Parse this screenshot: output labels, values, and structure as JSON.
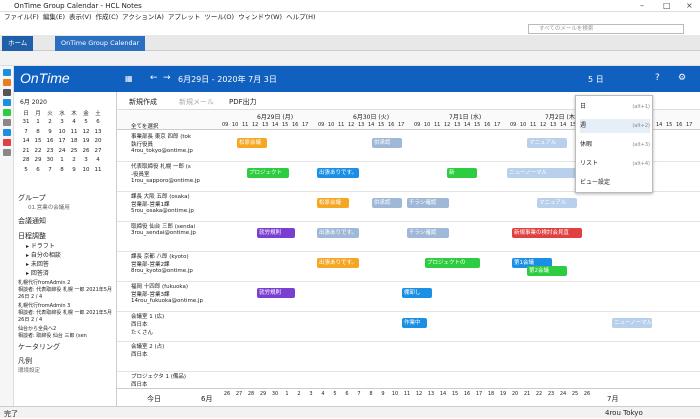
{
  "window": {
    "title": "OnTime Group Calendar - HCL Notes"
  },
  "menubar": [
    "ファイル(F)",
    "編集(E)",
    "表示(V)",
    "作成(C)",
    "アクション(A)",
    "アプレット",
    "ツール(O)",
    "ウィンドウ(W)",
    "ヘルプ(H)"
  ],
  "search": {
    "placeholder": "すべてのメールを検索"
  },
  "tabs": [
    {
      "label": "ホーム"
    },
    {
      "label": "OnTime Group Calendar"
    }
  ],
  "header": {
    "logo": "OnTime",
    "date_range": "6月29日 - 2020年 7月 3日",
    "view_label": "5 日"
  },
  "calendar": {
    "month": "6月 2020",
    "weekdays": [
      "日",
      "月",
      "火",
      "水",
      "木",
      "金",
      "土"
    ],
    "weeks": [
      [
        "31",
        "1",
        "2",
        "3",
        "4",
        "5",
        "6"
      ],
      [
        "7",
        "8",
        "9",
        "10",
        "11",
        "12",
        "13"
      ],
      [
        "14",
        "15",
        "16",
        "17",
        "18",
        "19",
        "20"
      ],
      [
        "21",
        "22",
        "23",
        "24",
        "25",
        "26",
        "27"
      ],
      [
        "28",
        "29",
        "30",
        "1",
        "2",
        "3",
        "4"
      ],
      [
        "5",
        "6",
        "7",
        "8",
        "9",
        "10",
        "11"
      ]
    ]
  },
  "sidebar": {
    "group": "グループ",
    "group_sub": "01.営業の会議用",
    "meeting": "会議通知",
    "approval": "日程調整",
    "approval_badge": "6",
    "tree": [
      "ドラフト",
      "自分の相談",
      "未回答",
      "回答済"
    ],
    "items": [
      {
        "t": "札幌代行fromAdmin 2",
        "s": "相談者: 代表取締役 札幌 一郎",
        "d": "2021年5月26日",
        "n": "2 / 4"
      },
      {
        "t": "札幌代行fromAdmin 3",
        "s": "相談者: 代表取締役 札幌 一郎",
        "d": "2021年5月26日",
        "n": "2 / 4"
      },
      {
        "t": "仙台から全員へ2",
        "s": "相談者: 取締役 仙台 三郎 (sen"
      }
    ],
    "care": "ケータリング",
    "legend": "凡例",
    "legend_sub": "環境設定"
  },
  "toolbar": {
    "new": "新規作成",
    "mail": "新規メール",
    "pdf": "PDF出力",
    "select_all": "全てを選択"
  },
  "days": [
    "6月29日 (月)",
    "6月30日 (火)",
    "7月1日 (水)",
    "7月2日 (木)",
    "(金)"
  ],
  "hours": [
    "09",
    "10",
    "11",
    "12",
    "13",
    "14",
    "15",
    "16",
    "17",
    "18"
  ],
  "people": [
    {
      "n": "事業部長 東京 四郎 (tok",
      "s": "執行役員",
      "e": "4rou_tokyo@ontime.jp"
    },
    {
      "n": "代表取締役 札幌 一郎 (s",
      "s": "-役員室",
      "e": "1rou_sapporo@ontime.jp"
    },
    {
      "n": "課長 大阪 五郎 (osaka)",
      "s": "営業部-営業1課",
      "e": "5rou_osaka@ontime.jp"
    },
    {
      "n": "取締役 仙台 三郎 (sendai",
      "s": "",
      "e": "3rou_sendai@ontime.jp"
    },
    {
      "n": "課長 京都 八郎 (kyoto)",
      "s": "営業部-営業2課",
      "e": "8rou_kyoto@ontime.jp"
    },
    {
      "n": "福岡 十四郎 (fukuoka)",
      "s": "営業部-営業3課",
      "e": "14rou_fukuoka@ontime.jp"
    },
    {
      "n": "会議室 1 (広)",
      "s": "西日本",
      "e": "たくさん"
    },
    {
      "n": "会議室 2 (占)",
      "s": "西日本",
      "e": ""
    },
    {
      "n": "プロジェクタ 1 (備品)",
      "s": "西日本",
      "e": ""
    }
  ],
  "events": [
    {
      "t": "松原会議",
      "c": "#f5a623"
    },
    {
      "t": "供承認",
      "c": "#a0b8d8"
    },
    {
      "t": "マニュアル",
      "c": "#b8d0ec"
    },
    {
      "t": "プロジェクト",
      "c": "#2ecc40"
    },
    {
      "t": "出張ありです。",
      "c": "#1a8fe3"
    },
    {
      "t": "新",
      "c": "#2ecc40"
    },
    {
      "t": "ニューノーマル",
      "c": "#b8d0ec"
    },
    {
      "t": "松原会議",
      "c": "#f5a623"
    },
    {
      "t": "供承認",
      "c": "#a0b8d8"
    },
    {
      "t": "チラシ確認",
      "c": "#a0b8d8"
    },
    {
      "t": "マニュアル",
      "c": "#b8d0ec"
    },
    {
      "t": "就労規則",
      "c": "#7a3fd1"
    },
    {
      "t": "出張ありです。",
      "c": "#a0b8d8"
    },
    {
      "t": "チラシ確認",
      "c": "#a0b8d8"
    },
    {
      "t": "新規事業の検討会見直",
      "c": "#e04040"
    },
    {
      "t": "出張ありです。",
      "c": "#f5a623"
    },
    {
      "t": "プロジェクトの",
      "c": "#2ecc40"
    },
    {
      "t": "第1会議",
      "c": "#1a8fe3"
    },
    {
      "t": "第2会議",
      "c": "#2ecc40"
    },
    {
      "t": "就労規則",
      "c": "#7a3fd1"
    },
    {
      "t": "棚卸し",
      "c": "#1a8fe3"
    },
    {
      "t": "作業中",
      "c": "#1a8fe3"
    },
    {
      "t": "ニューノーマル",
      "c": "#b8d0ec"
    }
  ],
  "menu": [
    {
      "l": "日",
      "k": "(alt+1)"
    },
    {
      "l": "週",
      "k": "(alt+2)"
    },
    {
      "l": "休暇",
      "k": "(alt+3)"
    },
    {
      "l": "リスト",
      "k": "(alt+4)"
    },
    {
      "l": "ビュー設定",
      "k": ""
    }
  ],
  "bottom": {
    "today": "今日",
    "month": "6月",
    "month2": "7月",
    "days": [
      "26",
      "27",
      "28",
      "29",
      "30",
      "1",
      "2",
      "3",
      "4",
      "5",
      "6",
      "7",
      "8",
      "9",
      "10",
      "11",
      "12",
      "13",
      "14",
      "15",
      "16",
      "17",
      "18",
      "19",
      "20",
      "21",
      "22",
      "23",
      "24",
      "25",
      "26"
    ]
  },
  "status": {
    "left": "完了",
    "user": "4rou Tokyo"
  }
}
